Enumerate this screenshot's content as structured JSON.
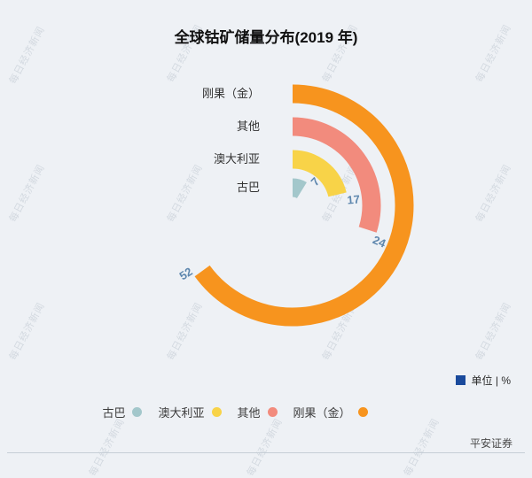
{
  "title": "全球钴矿储量分布(2019 年)",
  "watermark": {
    "text": "每日经济新闻"
  },
  "unit_legend": {
    "label": "单位 | %",
    "swatch_color": "#1A4A9C"
  },
  "source": "平安证券",
  "chart_data": {
    "type": "radial-bar",
    "title": "全球钴矿储量分布(2019 年)",
    "unit": "%",
    "categories": [
      "刚果（金）",
      "其他",
      "澳大利亚",
      "古巴"
    ],
    "values": [
      52,
      24,
      17,
      7
    ],
    "colors": [
      "#F7941E",
      "#F28B7D",
      "#F8D348",
      "#A3C7CB"
    ],
    "value_label_color": "#5E87AE",
    "start_angle": "top",
    "direction": "clockwise",
    "angle_axis_max": 80,
    "grid": false,
    "legend_position": "bottom",
    "legend": [
      {
        "label": "古巴",
        "color": "#A3C7CB"
      },
      {
        "label": "澳大利亚",
        "color": "#F8D348"
      },
      {
        "label": "其他",
        "color": "#F28B7D"
      },
      {
        "label": "刚果（金）",
        "color": "#F7941E"
      }
    ]
  }
}
